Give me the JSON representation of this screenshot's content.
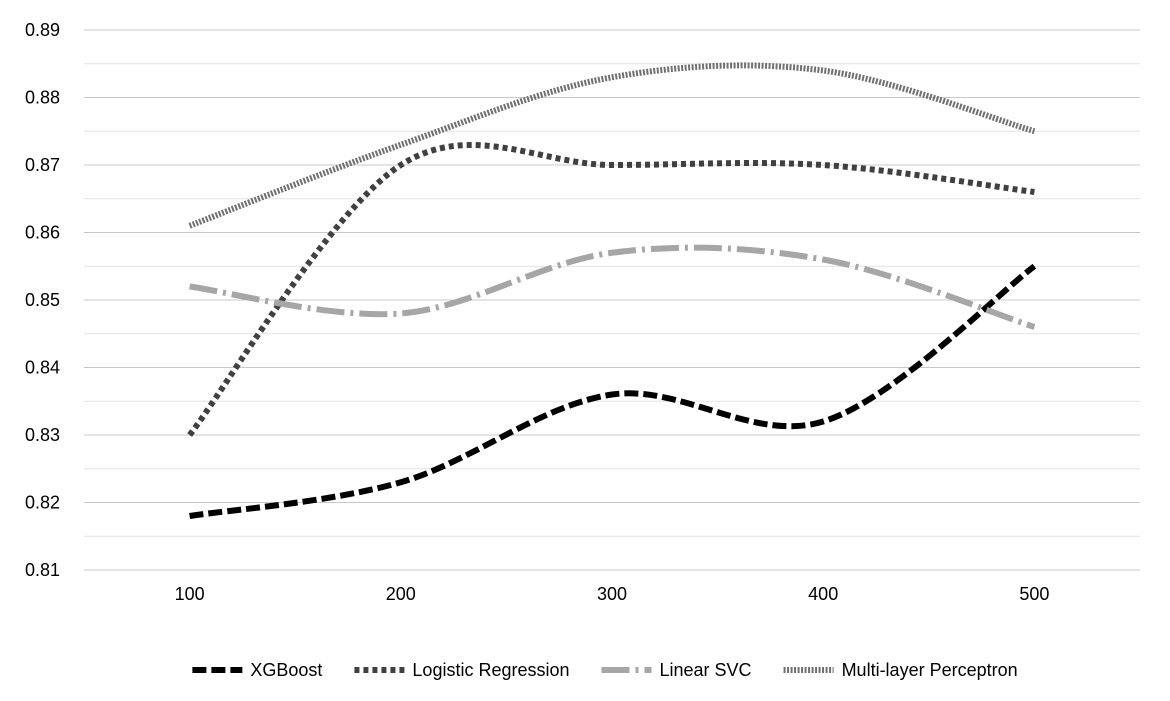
{
  "chart_data": {
    "type": "line",
    "title": "",
    "xlabel": "",
    "ylabel": "",
    "x": [
      100,
      200,
      300,
      400,
      500
    ],
    "xlim": [
      50,
      550
    ],
    "ylim": [
      0.81,
      0.89
    ],
    "y_ticks": [
      0.81,
      0.82,
      0.83,
      0.84,
      0.85,
      0.86,
      0.87,
      0.88,
      0.89
    ],
    "y_tick_labels": [
      "0.81",
      "0.82",
      "0.83",
      "0.84",
      "0.85",
      "0.86",
      "0.87",
      "0.88",
      "0.89"
    ],
    "x_tick_labels": [
      "100",
      "200",
      "300",
      "400",
      "500"
    ],
    "grid": true,
    "legend_position": "bottom",
    "smooth": true,
    "series": [
      {
        "name": "XGBoost",
        "values": [
          0.818,
          0.823,
          0.836,
          0.832,
          0.855
        ],
        "color": "#000000",
        "style": "dash"
      },
      {
        "name": "Logistic Regression",
        "values": [
          0.83,
          0.87,
          0.87,
          0.87,
          0.866
        ],
        "color": "#404040",
        "style": "dot"
      },
      {
        "name": "Linear SVC",
        "values": [
          0.852,
          0.848,
          0.857,
          0.856,
          0.846
        ],
        "color": "#a6a6a6",
        "style": "longdash"
      },
      {
        "name": "Multi-layer Perceptron",
        "values": [
          0.861,
          0.873,
          0.883,
          0.884,
          0.875
        ],
        "color": "#707070",
        "style": "fine"
      }
    ]
  }
}
